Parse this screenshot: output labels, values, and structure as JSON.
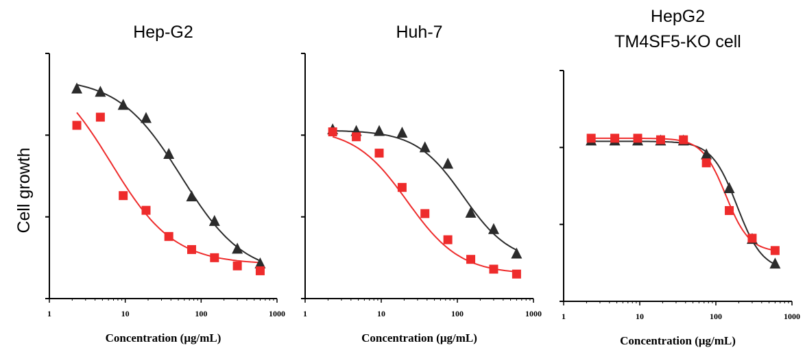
{
  "figure": {
    "ylabel": "Cell growth"
  },
  "colors": {
    "black_series": "#2b2b2b",
    "red_series": "#ee2b2b",
    "axis": "#000000"
  },
  "chart_data": [
    {
      "type": "scatter",
      "title": "Hep-G2",
      "xlabel": "Concentration (μg/mL)",
      "ylabel": "Cell growth",
      "xscale": "log",
      "xlim": [
        1,
        1000
      ],
      "ylim": [
        0,
        1.5
      ],
      "x_tick_labels": [
        "1",
        "10",
        "100",
        "1000"
      ],
      "series": [
        {
          "marker": "triangle",
          "color": "#2b2b2b",
          "x": [
            2.3,
            4.7,
            9.4,
            18.8,
            37.5,
            75,
            150,
            300,
            600
          ],
          "y": [
            1.28,
            1.26,
            1.18,
            1.1,
            0.88,
            0.62,
            0.47,
            0.3,
            0.21
          ],
          "fit": {
            "top": 1.35,
            "bottom": 0.14,
            "ic50": 55,
            "hill": 1.05
          }
        },
        {
          "marker": "square",
          "color": "#ee2b2b",
          "x": [
            2.3,
            4.7,
            9.4,
            18.8,
            37.5,
            75,
            150,
            300,
            600
          ],
          "y": [
            1.06,
            1.11,
            0.63,
            0.54,
            0.38,
            0.3,
            0.25,
            0.2,
            0.17
          ],
          "fit": {
            "top": 1.45,
            "bottom": 0.21,
            "ic50": 6.5,
            "hill": 1.05
          }
        }
      ]
    },
    {
      "type": "scatter",
      "title": "Huh-7",
      "xlabel": "Concentration (μg/mL)",
      "ylabel": "",
      "xscale": "log",
      "xlim": [
        1,
        1000
      ],
      "ylim": [
        0,
        1.5
      ],
      "x_tick_labels": [
        "1",
        "10",
        "100",
        "1000"
      ],
      "series": [
        {
          "marker": "triangle",
          "color": "#2b2b2b",
          "x": [
            2.3,
            4.7,
            9.4,
            18.8,
            37.5,
            75,
            150,
            300,
            600
          ],
          "y": [
            1.03,
            1.02,
            1.02,
            1.01,
            0.92,
            0.82,
            0.52,
            0.42,
            0.27
          ],
          "fit": {
            "top": 1.03,
            "bottom": 0.22,
            "ic50": 120,
            "hill": 1.4
          }
        },
        {
          "marker": "square",
          "color": "#ee2b2b",
          "x": [
            2.3,
            4.7,
            9.4,
            18.8,
            37.5,
            75,
            150,
            300,
            600
          ],
          "y": [
            1.02,
            0.99,
            0.89,
            0.68,
            0.52,
            0.36,
            0.24,
            0.18,
            0.15
          ],
          "fit": {
            "top": 1.04,
            "bottom": 0.15,
            "ic50": 22,
            "hill": 1.25
          }
        }
      ]
    },
    {
      "type": "scatter",
      "title": "HepG2\nTM4SF5-KO cell",
      "xlabel": "Concentration (μg/mL)",
      "ylabel": "",
      "xscale": "log",
      "xlim": [
        1,
        1000
      ],
      "ylim": [
        0,
        1.5
      ],
      "x_tick_labels": [
        "1",
        "10",
        "100",
        "1000"
      ],
      "series": [
        {
          "marker": "triangle",
          "color": "#2b2b2b",
          "x": [
            2.3,
            4.7,
            9.4,
            18.8,
            37.5,
            75,
            150,
            300,
            600
          ],
          "y": [
            1.04,
            1.04,
            1.04,
            1.04,
            1.04,
            0.95,
            0.73,
            0.4,
            0.24
          ],
          "fit": {
            "top": 1.04,
            "bottom": 0.2,
            "ic50": 190,
            "hill": 2.6
          }
        },
        {
          "marker": "square",
          "color": "#ee2b2b",
          "x": [
            2.3,
            4.7,
            9.4,
            18.8,
            37.5,
            75,
            150,
            300,
            600
          ],
          "y": [
            1.06,
            1.06,
            1.06,
            1.05,
            1.05,
            0.9,
            0.59,
            0.41,
            0.33
          ],
          "fit": {
            "top": 1.06,
            "bottom": 0.32,
            "ic50": 135,
            "hill": 2.8
          }
        }
      ]
    }
  ]
}
